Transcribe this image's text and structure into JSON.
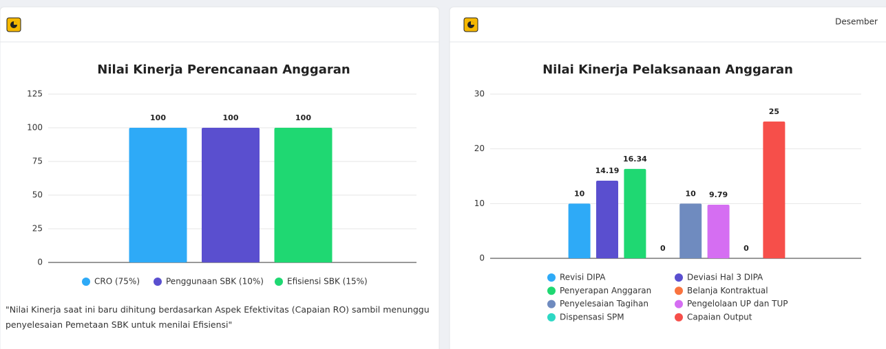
{
  "period": "Desember",
  "note": "\"Nilai Kinerja saat ini baru dihitung berdasarkan Aspek Efektivitas (Capaian RO) sambil menunggu penyelesaian Pemetaan SBK untuk menilai Efisiensi\"",
  "chart_data": [
    {
      "type": "bar",
      "title": "Nilai Kinerja Perencanaan Anggaran",
      "categories": [
        null
      ],
      "series": [
        {
          "name": "CRO (75%)",
          "color": "#2eaaf7",
          "values": [
            100
          ]
        },
        {
          "name": "Penggunaan SBK (10%)",
          "color": "#5a4fcf",
          "values": [
            100
          ]
        },
        {
          "name": "Efisiensi SBK (15%)",
          "color": "#1fd872",
          "values": [
            100
          ]
        }
      ],
      "ylim": [
        0,
        125
      ],
      "yticks": [
        0,
        25,
        50,
        75,
        100,
        125
      ],
      "grid": true
    },
    {
      "type": "bar",
      "title": "Nilai Kinerja Pelaksanaan Anggaran",
      "categories": [
        null
      ],
      "series": [
        {
          "name": "Revisi DIPA",
          "color": "#2eaaf7",
          "values": [
            10
          ]
        },
        {
          "name": "Deviasi Hal 3 DIPA",
          "color": "#5a4fcf",
          "values": [
            14.19
          ]
        },
        {
          "name": "Penyerapan Anggaran",
          "color": "#1fd872",
          "values": [
            16.34
          ]
        },
        {
          "name": "Belanja Kontraktual",
          "color": "#f9733f",
          "values": [
            0
          ]
        },
        {
          "name": "Penyelesaian Tagihan",
          "color": "#6f8bbf",
          "values": [
            10
          ]
        },
        {
          "name": "Pengelolaan UP dan TUP",
          "color": "#d56ef2",
          "values": [
            9.79
          ]
        },
        {
          "name": "Dispensasi SPM",
          "color": "#2dd8c4",
          "values": [
            0
          ]
        },
        {
          "name": "Capaian Output",
          "color": "#f64f4a",
          "values": [
            25
          ]
        }
      ],
      "ylim": [
        0,
        30
      ],
      "yticks": [
        0,
        10,
        20,
        30
      ],
      "grid": true
    }
  ]
}
